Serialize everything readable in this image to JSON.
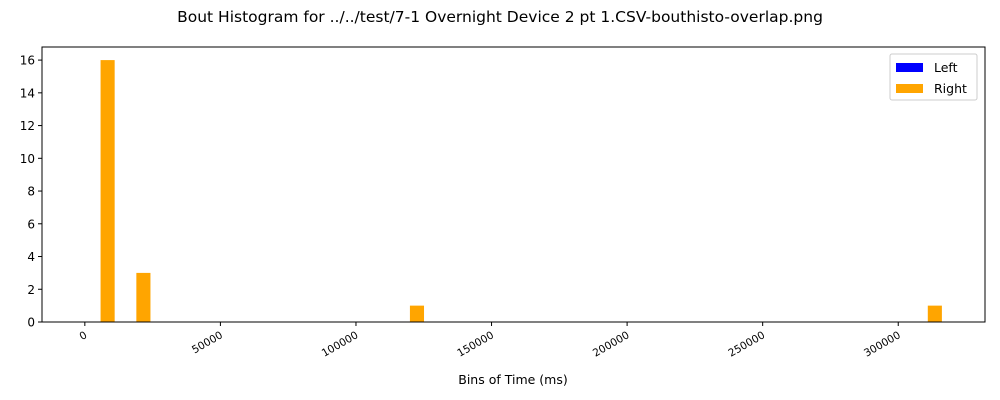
{
  "chart_data": {
    "type": "bar",
    "title": "Bout Histogram for ../../test/7-1 Overnight Device 2 pt 1.CSV-bouthisto-overlap.png",
    "xlabel": "Bins of Time (ms)",
    "ylabel": "",
    "xlim": [
      -15800,
      332000
    ],
    "ylim": [
      0,
      16.8
    ],
    "x_ticks": [
      0,
      50000,
      100000,
      150000,
      200000,
      250000,
      300000
    ],
    "x_tick_labels": [
      "0",
      "50000",
      "100000",
      "150000",
      "200000",
      "250000",
      "300000"
    ],
    "y_ticks": [
      0,
      2,
      4,
      6,
      8,
      10,
      12,
      14,
      16
    ],
    "y_tick_labels": [
      "0",
      "2",
      "4",
      "6",
      "8",
      "10",
      "12",
      "14",
      "16"
    ],
    "bar_width": 5200,
    "legend": {
      "placement": "top-right"
    },
    "series": [
      {
        "name": "Left",
        "color": "#0000ff",
        "x": [],
        "values": []
      },
      {
        "name": "Right",
        "color": "#ffa500",
        "x": [
          8400,
          21600,
          122500,
          313500
        ],
        "values": [
          16,
          3,
          1,
          1
        ]
      }
    ]
  }
}
